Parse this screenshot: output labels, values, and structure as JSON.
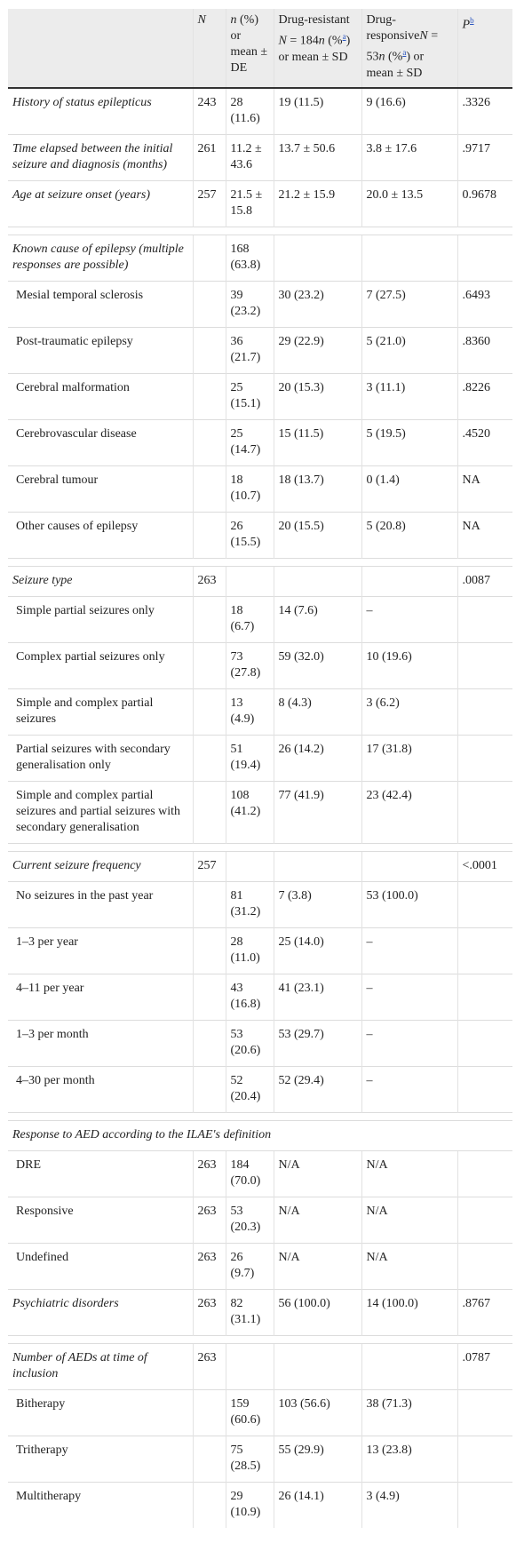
{
  "table": {
    "columns": [
      [
        {
          "t": "N",
          "italic": true
        }
      ],
      [
        {
          "t": "n",
          "italic": true
        },
        {
          "t": " (%) or mean ± DE"
        }
      ],
      [
        {
          "t": "Drug-resistant "
        },
        {
          "t": "N",
          "italic": true
        },
        {
          "t": " = 184"
        },
        {
          "t": "n",
          "italic": true
        },
        {
          "t": " (%"
        },
        {
          "t": "a",
          "sup": true
        },
        {
          "t": ") or mean ± SD"
        }
      ],
      [
        {
          "t": "Drug-responsive"
        },
        {
          "t": "N",
          "italic": true
        },
        {
          "t": " = 53"
        },
        {
          "t": "n",
          "italic": true
        },
        {
          "t": " (%"
        },
        {
          "t": "a",
          "sup": true
        },
        {
          "t": ") or mean ± SD"
        }
      ],
      [
        {
          "t": "P",
          "italic": true
        },
        {
          "t": "b",
          "sup": true
        }
      ]
    ],
    "groups": [
      {
        "rows": [
          {
            "label": "History of status epilepticus",
            "italic": true,
            "cells": [
              "243",
              "28 (11.6)",
              "19 (11.5)",
              "9 (16.6)",
              ".3326"
            ]
          },
          {
            "label": "Time elapsed between the initial seizure and diagnosis (months)",
            "italic": true,
            "cells": [
              "261",
              "11.2 ± 43.6",
              "13.7 ± 50.6",
              "3.8 ± 17.6",
              ".9717"
            ]
          },
          {
            "label": "Age at seizure onset (years)",
            "italic": true,
            "cells": [
              "257",
              "21.5 ± 15.8",
              "21.2 ± 15.9",
              "20.0 ± 13.5",
              "0.9678"
            ]
          }
        ]
      },
      {
        "rows": [
          {
            "label": "Known cause of epilepsy (multiple responses are possible)",
            "italic": true,
            "cells": [
              null,
              "168 (63.8)",
              null,
              null,
              null
            ]
          },
          {
            "label": "Mesial temporal sclerosis",
            "indent": true,
            "cells": [
              null,
              "39 (23.2)",
              "30 (23.2)",
              "7 (27.5)",
              ".6493"
            ]
          },
          {
            "label": "Post-traumatic epilepsy",
            "indent": true,
            "cells": [
              null,
              "36 (21.7)",
              "29 (22.9)",
              "5 (21.0)",
              ".8360"
            ]
          },
          {
            "label": "Cerebral malformation",
            "indent": true,
            "cells": [
              null,
              "25 (15.1)",
              "20 (15.3)",
              "3 (11.1)",
              ".8226"
            ]
          },
          {
            "label": "Cerebrovascular disease",
            "indent": true,
            "cells": [
              null,
              "25 (14.7)",
              "15 (11.5)",
              "5 (19.5)",
              ".4520"
            ]
          },
          {
            "label": "Cerebral tumour",
            "indent": true,
            "cells": [
              null,
              "18 (10.7)",
              "18 (13.7)",
              "0 (1.4)",
              "NA"
            ]
          },
          {
            "label": "Other causes of epilepsy",
            "indent": true,
            "cells": [
              null,
              "26 (15.5)",
              "20 (15.5)",
              "5 (20.8)",
              "NA"
            ]
          }
        ]
      },
      {
        "rows": [
          {
            "label": "Seizure type",
            "italic": true,
            "cells": [
              "263",
              null,
              null,
              null,
              ".0087"
            ]
          },
          {
            "label": "Simple partial seizures only",
            "indent": true,
            "cells": [
              null,
              "18 (6.7)",
              "14 (7.6)",
              "–",
              null
            ]
          },
          {
            "label": "Complex partial seizures only",
            "indent": true,
            "cells": [
              null,
              "73 (27.8)",
              "59 (32.0)",
              "10 (19.6)",
              null
            ]
          },
          {
            "label": "Simple and complex partial seizures",
            "indent": true,
            "cells": [
              null,
              "13 (4.9)",
              "8 (4.3)",
              "3 (6.2)",
              null
            ]
          },
          {
            "label": "Partial seizures with secondary generalisation only",
            "indent": true,
            "cells": [
              null,
              "51 (19.4)",
              "26 (14.2)",
              "17 (31.8)",
              null
            ]
          },
          {
            "label": "Simple and complex partial seizures and partial seizures with secondary generalisation",
            "indent": true,
            "cells": [
              null,
              "108 (41.2)",
              "77 (41.9)",
              "23 (42.4)",
              null
            ]
          }
        ]
      },
      {
        "rows": [
          {
            "label": "Current seizure frequency",
            "italic": true,
            "cells": [
              "257",
              null,
              null,
              null,
              "<.0001"
            ]
          },
          {
            "label": "No seizures in the past year",
            "indent": true,
            "cells": [
              null,
              "81 (31.2)",
              "7 (3.8)",
              "53 (100.0)",
              null
            ]
          },
          {
            "label": "1–3 per year",
            "indent": true,
            "cells": [
              null,
              "28 (11.0)",
              "25 (14.0)",
              "–",
              null
            ]
          },
          {
            "label": "4–11 per year",
            "indent": true,
            "cells": [
              null,
              "43 (16.8)",
              "41 (23.1)",
              "–",
              null
            ]
          },
          {
            "label": "1–3 per month",
            "indent": true,
            "cells": [
              null,
              "53 (20.6)",
              "53 (29.7)",
              "–",
              null
            ]
          },
          {
            "label": "4–30 per month",
            "indent": true,
            "cells": [
              null,
              "52 (20.4)",
              "52 (29.4)",
              "–",
              null
            ]
          }
        ]
      },
      {
        "rows": [
          {
            "label": "Response to AED according to the ILAE's definition",
            "italic": true,
            "span": true
          },
          {
            "label": "DRE",
            "indent": true,
            "cells": [
              "263",
              "184 (70.0)",
              "N/A",
              "N/A",
              null
            ]
          },
          {
            "label": "Responsive",
            "indent": true,
            "cells": [
              "263",
              "53 (20.3)",
              "N/A",
              "N/A",
              null
            ]
          },
          {
            "label": "Undefined",
            "indent": true,
            "cells": [
              "263",
              "26 (9.7)",
              "N/A",
              "N/A",
              null
            ]
          },
          {
            "label": "Psychiatric disorders",
            "italic": true,
            "cells": [
              "263",
              "82 (31.1)",
              "56 (100.0)",
              "14 (100.0)",
              ".8767"
            ]
          }
        ]
      },
      {
        "rows": [
          {
            "label": "Number of AEDs at time of inclusion",
            "italic": true,
            "cells": [
              "263",
              null,
              null,
              null,
              ".0787"
            ]
          },
          {
            "label": "Bitherapy",
            "indent": true,
            "cells": [
              null,
              "159 (60.6)",
              "103 (56.6)",
              "38 (71.3)",
              null
            ]
          },
          {
            "label": "Tritherapy",
            "indent": true,
            "cells": [
              null,
              "75 (28.5)",
              "55 (29.9)",
              "13 (23.8)",
              null
            ]
          },
          {
            "label": "Multitherapy",
            "indent": true,
            "cells": [
              null,
              "29 (10.9)",
              "26 (14.1)",
              "3 (4.9)",
              null
            ]
          }
        ]
      }
    ]
  }
}
